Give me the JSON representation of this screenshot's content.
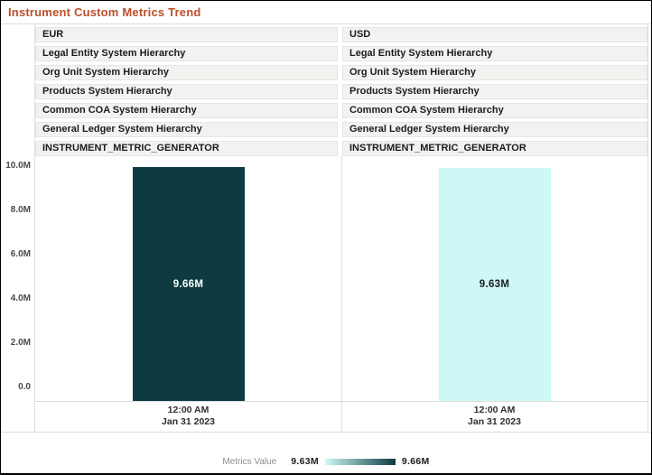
{
  "title": "Instrument Custom Metrics Trend",
  "colors": {
    "title_accent": "#bc4f2a",
    "row_background": "#f3f2f0",
    "grid_line": "#dcdcdc",
    "bar_dark": "#0d3b41",
    "bar_light": "#cdf8f6"
  },
  "panels": [
    {
      "currency": "EUR",
      "rows": [
        "Legal Entity System Hierarchy",
        "Org Unit System Hierarchy",
        "Products System Hierarchy",
        "Common COA System Hierarchy",
        "General Ledger System Hierarchy",
        "INSTRUMENT_METRIC_GENERATOR"
      ],
      "time_label": "12:00 AM",
      "date_label": "Jan 31 2023"
    },
    {
      "currency": "USD",
      "rows": [
        "Legal Entity System Hierarchy",
        "Org Unit System Hierarchy",
        "Products System Hierarchy",
        "Common COA System Hierarchy",
        "General Ledger System Hierarchy",
        "INSTRUMENT_METRIC_GENERATOR"
      ],
      "time_label": "12:00 AM",
      "date_label": "Jan 31 2023"
    }
  ],
  "chart_data": {
    "type": "bar",
    "title": "Instrument Custom Metrics Trend",
    "categories": [
      "12:00 AM Jan 31 2023"
    ],
    "series": [
      {
        "name": "EUR",
        "value": 9660000,
        "label": "9.66M",
        "bar_color": "#0d3b41",
        "label_color": "#ffffff"
      },
      {
        "name": "USD",
        "value": 9630000,
        "label": "9.63M",
        "bar_color": "#cdf8f6",
        "label_color": "#1c1c1c"
      }
    ],
    "ylim": [
      0,
      10000000
    ],
    "y_tick_labels": [
      "10.0M",
      "8.0M",
      "6.0M",
      "4.0M",
      "2.0M",
      "0.0"
    ],
    "grid": false,
    "legend_position": "bottom"
  },
  "legend": {
    "label": "Metrics Value",
    "min_value": "9.63M",
    "max_value": "9.66M",
    "gradient_from": "#cdf8f6",
    "gradient_to": "#0d3b41"
  }
}
